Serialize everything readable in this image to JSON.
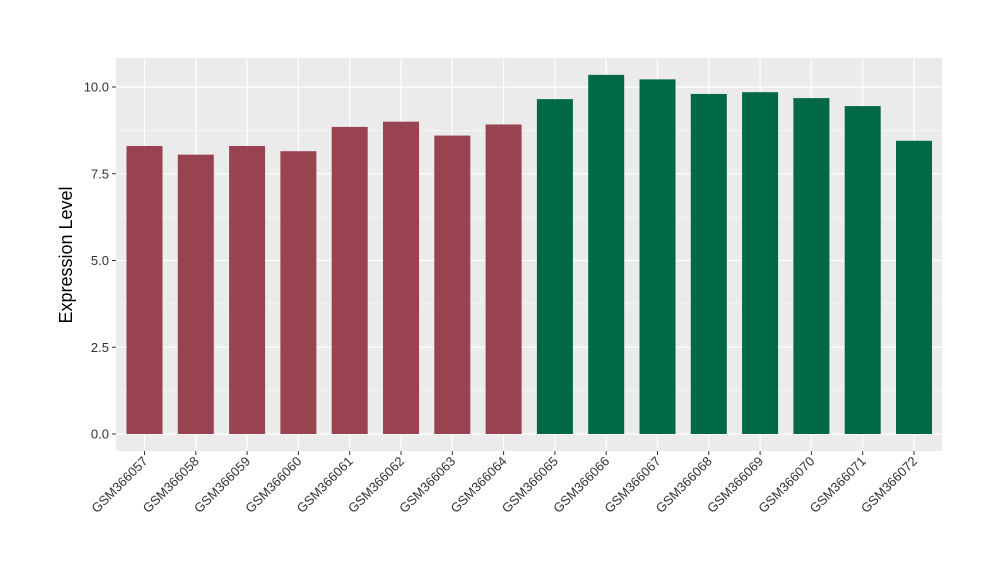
{
  "chart_data": {
    "type": "bar",
    "ylabel": "Expression Level",
    "xlabel": "",
    "ylim": [
      0,
      10.9
    ],
    "yticks": [
      0.0,
      2.5,
      5.0,
      7.5,
      10.0
    ],
    "ytick_labels": [
      "0.0",
      "2.5",
      "5.0",
      "7.5",
      "10.0"
    ],
    "grid": true,
    "categories": [
      "GSM366057",
      "GSM366058",
      "GSM366059",
      "GSM366060",
      "GSM366061",
      "GSM366062",
      "GSM366063",
      "GSM366064",
      "GSM366065",
      "GSM366066",
      "GSM366067",
      "GSM366068",
      "GSM366069",
      "GSM366070",
      "GSM366071",
      "GSM366072"
    ],
    "values": [
      8.3,
      8.05,
      8.3,
      8.15,
      8.85,
      9.0,
      8.6,
      8.92,
      9.65,
      10.35,
      10.22,
      9.8,
      9.85,
      9.68,
      9.45,
      8.45
    ],
    "groups": [
      0,
      0,
      0,
      0,
      0,
      0,
      0,
      0,
      1,
      1,
      1,
      1,
      1,
      1,
      1,
      1
    ],
    "group_colors": [
      "#9A4350",
      "#006845"
    ],
    "panel_background": "#EBEBEB",
    "gridline_color": "#FFFFFF"
  }
}
